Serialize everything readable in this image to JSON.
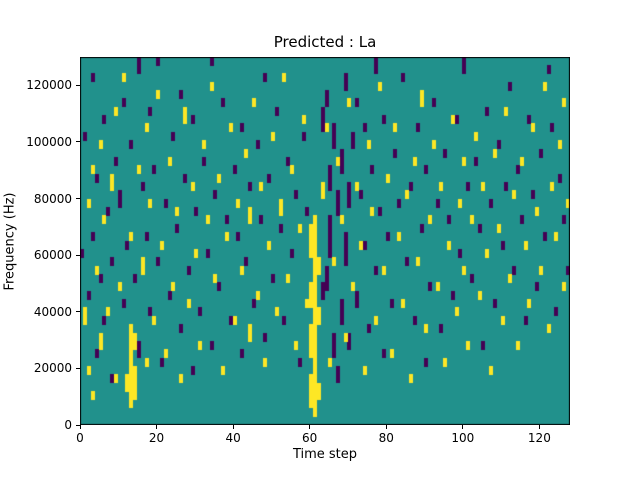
{
  "figure": {
    "title": "Predicted : La",
    "xlabel": "Time step",
    "ylabel": "Frequency (Hz)"
  },
  "chart_data": {
    "type": "heatmap",
    "title": "Predicted : La",
    "xlabel": "Time step",
    "ylabel": "Frequency (Hz)",
    "x_range": [
      0,
      128
    ],
    "y_range": [
      0,
      130000
    ],
    "grid": {
      "cols": 128,
      "rows": 44
    },
    "x_ticks": [
      0,
      20,
      40,
      60,
      80,
      100,
      120
    ],
    "y_ticks": [
      0,
      20000,
      40000,
      60000,
      80000,
      100000,
      120000
    ],
    "legend": "none",
    "grid_lines": false,
    "colors": {
      "background": "#21918c",
      "high": "#fde725",
      "low": "#440154"
    },
    "cell_encoding": "runs are [column, rowStart, rowEnd] inclusive; row 0 = 0 Hz (bottom), column 0 = time step 0 (left)",
    "yellow_runs": [
      [
        1,
        12,
        13
      ],
      [
        2,
        6,
        6
      ],
      [
        2,
        26,
        26
      ],
      [
        3,
        3,
        3
      ],
      [
        3,
        30,
        30
      ],
      [
        4,
        18,
        18
      ],
      [
        5,
        9,
        10
      ],
      [
        5,
        33,
        33
      ],
      [
        6,
        24,
        24
      ],
      [
        7,
        13,
        13
      ],
      [
        8,
        28,
        29
      ],
      [
        9,
        5,
        5
      ],
      [
        9,
        37,
        37
      ],
      [
        10,
        16,
        16
      ],
      [
        11,
        41,
        41
      ],
      [
        12,
        4,
        5
      ],
      [
        13,
        2,
        11
      ],
      [
        13,
        22,
        22
      ],
      [
        14,
        3,
        6
      ],
      [
        14,
        9,
        10
      ],
      [
        15,
        30,
        30
      ],
      [
        16,
        18,
        19
      ],
      [
        17,
        7,
        7
      ],
      [
        17,
        35,
        35
      ],
      [
        18,
        26,
        26
      ],
      [
        19,
        12,
        12
      ],
      [
        20,
        39,
        39
      ],
      [
        21,
        21,
        21
      ],
      [
        22,
        8,
        8
      ],
      [
        23,
        31,
        31
      ],
      [
        24,
        16,
        16
      ],
      [
        25,
        25,
        25
      ],
      [
        26,
        5,
        5
      ],
      [
        27,
        36,
        37
      ],
      [
        28,
        14,
        14
      ],
      [
        29,
        28,
        28
      ],
      [
        30,
        20,
        20
      ],
      [
        31,
        9,
        9
      ],
      [
        32,
        33,
        33
      ],
      [
        33,
        24,
        24
      ],
      [
        34,
        40,
        40
      ],
      [
        35,
        17,
        17
      ],
      [
        36,
        29,
        29
      ],
      [
        37,
        6,
        6
      ],
      [
        38,
        22,
        22
      ],
      [
        39,
        35,
        35
      ],
      [
        40,
        12,
        12
      ],
      [
        41,
        26,
        26
      ],
      [
        42,
        18,
        18
      ],
      [
        43,
        32,
        32
      ],
      [
        44,
        10,
        11
      ],
      [
        44,
        24,
        25
      ],
      [
        45,
        38,
        38
      ],
      [
        46,
        15,
        15
      ],
      [
        47,
        28,
        28
      ],
      [
        48,
        7,
        7
      ],
      [
        49,
        21,
        21
      ],
      [
        50,
        34,
        34
      ],
      [
        51,
        13,
        13
      ],
      [
        52,
        25,
        26
      ],
      [
        53,
        41,
        41
      ],
      [
        54,
        17,
        17
      ],
      [
        55,
        30,
        30
      ],
      [
        56,
        9,
        9
      ],
      [
        57,
        23,
        23
      ],
      [
        58,
        36,
        36
      ],
      [
        59,
        14,
        14
      ],
      [
        60,
        2,
        5
      ],
      [
        60,
        8,
        11
      ],
      [
        60,
        14,
        16
      ],
      [
        60,
        20,
        23
      ],
      [
        61,
        1,
        24
      ],
      [
        62,
        3,
        4
      ],
      [
        62,
        12,
        13
      ],
      [
        62,
        18,
        19
      ],
      [
        63,
        27,
        28
      ],
      [
        64,
        35,
        35
      ],
      [
        65,
        7,
        7
      ],
      [
        66,
        19,
        19
      ],
      [
        67,
        31,
        31
      ],
      [
        68,
        24,
        24
      ],
      [
        69,
        10,
        10
      ],
      [
        70,
        38,
        38
      ],
      [
        71,
        16,
        16
      ],
      [
        72,
        28,
        28
      ],
      [
        73,
        21,
        21
      ],
      [
        74,
        6,
        6
      ],
      [
        75,
        33,
        33
      ],
      [
        76,
        25,
        25
      ],
      [
        77,
        12,
        12
      ],
      [
        78,
        40,
        40
      ],
      [
        79,
        18,
        18
      ],
      [
        80,
        29,
        29
      ],
      [
        81,
        8,
        8
      ],
      [
        82,
        35,
        35
      ],
      [
        83,
        22,
        22
      ],
      [
        84,
        14,
        14
      ],
      [
        85,
        27,
        27
      ],
      [
        86,
        5,
        5
      ],
      [
        87,
        31,
        31
      ],
      [
        88,
        19,
        19
      ],
      [
        89,
        38,
        39
      ],
      [
        90,
        11,
        11
      ],
      [
        91,
        24,
        24
      ],
      [
        92,
        33,
        33
      ],
      [
        93,
        16,
        16
      ],
      [
        94,
        28,
        28
      ],
      [
        95,
        7,
        7
      ],
      [
        96,
        21,
        21
      ],
      [
        97,
        36,
        36
      ],
      [
        98,
        13,
        13
      ],
      [
        99,
        26,
        26
      ],
      [
        100,
        18,
        18
      ],
      [
        100,
        31,
        31
      ],
      [
        101,
        9,
        9
      ],
      [
        102,
        24,
        24
      ],
      [
        103,
        34,
        34
      ],
      [
        104,
        15,
        15
      ],
      [
        105,
        28,
        28
      ],
      [
        106,
        20,
        20
      ],
      [
        107,
        6,
        6
      ],
      [
        108,
        32,
        32
      ],
      [
        109,
        23,
        23
      ],
      [
        110,
        12,
        12
      ],
      [
        111,
        37,
        37
      ],
      [
        112,
        17,
        17
      ],
      [
        113,
        27,
        27
      ],
      [
        114,
        9,
        9
      ],
      [
        115,
        31,
        31
      ],
      [
        116,
        21,
        21
      ],
      [
        117,
        14,
        14
      ],
      [
        118,
        35,
        35
      ],
      [
        119,
        25,
        25
      ],
      [
        120,
        18,
        18
      ],
      [
        121,
        40,
        40
      ],
      [
        122,
        11,
        11
      ],
      [
        123,
        28,
        28
      ],
      [
        124,
        22,
        22
      ],
      [
        125,
        33,
        33
      ],
      [
        126,
        16,
        16
      ],
      [
        126,
        38,
        38
      ],
      [
        127,
        26,
        26
      ]
    ],
    "dark_runs": [
      [
        0,
        20,
        20
      ],
      [
        1,
        34,
        34
      ],
      [
        2,
        15,
        15
      ],
      [
        3,
        22,
        22
      ],
      [
        3,
        41,
        41
      ],
      [
        4,
        8,
        8
      ],
      [
        4,
        29,
        29
      ],
      [
        5,
        17,
        17
      ],
      [
        6,
        12,
        12
      ],
      [
        6,
        36,
        36
      ],
      [
        7,
        25,
        25
      ],
      [
        8,
        5,
        5
      ],
      [
        8,
        19,
        19
      ],
      [
        9,
        31,
        31
      ],
      [
        10,
        26,
        27
      ],
      [
        11,
        14,
        14
      ],
      [
        11,
        38,
        38
      ],
      [
        12,
        21,
        21
      ],
      [
        13,
        33,
        33
      ],
      [
        14,
        17,
        17
      ],
      [
        15,
        8,
        9
      ],
      [
        15,
        42,
        43
      ],
      [
        16,
        28,
        28
      ],
      [
        17,
        22,
        22
      ],
      [
        18,
        13,
        13
      ],
      [
        18,
        37,
        37
      ],
      [
        19,
        30,
        30
      ],
      [
        20,
        19,
        19
      ],
      [
        20,
        43,
        43
      ],
      [
        21,
        7,
        7
      ],
      [
        22,
        26,
        26
      ],
      [
        23,
        15,
        15
      ],
      [
        24,
        34,
        34
      ],
      [
        25,
        23,
        23
      ],
      [
        26,
        11,
        11
      ],
      [
        26,
        39,
        39
      ],
      [
        27,
        29,
        29
      ],
      [
        28,
        18,
        18
      ],
      [
        29,
        6,
        6
      ],
      [
        29,
        36,
        36
      ],
      [
        30,
        25,
        25
      ],
      [
        31,
        13,
        13
      ],
      [
        32,
        31,
        31
      ],
      [
        33,
        20,
        20
      ],
      [
        34,
        9,
        9
      ],
      [
        34,
        43,
        43
      ],
      [
        35,
        27,
        27
      ],
      [
        36,
        16,
        16
      ],
      [
        37,
        38,
        38
      ],
      [
        38,
        24,
        24
      ],
      [
        39,
        12,
        12
      ],
      [
        40,
        30,
        30
      ],
      [
        41,
        22,
        22
      ],
      [
        42,
        8,
        8
      ],
      [
        42,
        35,
        35
      ],
      [
        43,
        19,
        19
      ],
      [
        44,
        28,
        28
      ],
      [
        45,
        14,
        14
      ],
      [
        46,
        33,
        33
      ],
      [
        47,
        24,
        24
      ],
      [
        48,
        10,
        10
      ],
      [
        48,
        41,
        41
      ],
      [
        49,
        29,
        29
      ],
      [
        50,
        17,
        17
      ],
      [
        51,
        37,
        37
      ],
      [
        52,
        23,
        23
      ],
      [
        53,
        12,
        12
      ],
      [
        54,
        31,
        31
      ],
      [
        55,
        20,
        20
      ],
      [
        56,
        27,
        27
      ],
      [
        57,
        7,
        7
      ],
      [
        58,
        34,
        34
      ],
      [
        59,
        25,
        25
      ],
      [
        63,
        15,
        16
      ],
      [
        63,
        35,
        37
      ],
      [
        64,
        16,
        18
      ],
      [
        64,
        38,
        39
      ],
      [
        65,
        20,
        24
      ],
      [
        65,
        28,
        30
      ],
      [
        66,
        8,
        10
      ],
      [
        66,
        33,
        35
      ],
      [
        67,
        5,
        6
      ],
      [
        67,
        25,
        27
      ],
      [
        68,
        12,
        14
      ],
      [
        68,
        30,
        32
      ],
      [
        69,
        19,
        22
      ],
      [
        69,
        40,
        41
      ],
      [
        70,
        9,
        10
      ],
      [
        70,
        26,
        28
      ],
      [
        71,
        33,
        34
      ],
      [
        72,
        14,
        15
      ],
      [
        72,
        38,
        38
      ],
      [
        73,
        27,
        27
      ],
      [
        74,
        21,
        21
      ],
      [
        74,
        35,
        35
      ],
      [
        75,
        11,
        11
      ],
      [
        76,
        30,
        30
      ],
      [
        77,
        18,
        18
      ],
      [
        77,
        42,
        43
      ],
      [
        78,
        25,
        25
      ],
      [
        79,
        8,
        8
      ],
      [
        79,
        36,
        36
      ],
      [
        80,
        22,
        22
      ],
      [
        81,
        14,
        14
      ],
      [
        82,
        32,
        32
      ],
      [
        83,
        26,
        26
      ],
      [
        84,
        41,
        41
      ],
      [
        85,
        19,
        19
      ],
      [
        86,
        28,
        28
      ],
      [
        87,
        12,
        12
      ],
      [
        88,
        35,
        35
      ],
      [
        89,
        23,
        23
      ],
      [
        90,
        7,
        7
      ],
      [
        90,
        30,
        30
      ],
      [
        91,
        16,
        16
      ],
      [
        92,
        38,
        38
      ],
      [
        93,
        26,
        26
      ],
      [
        94,
        11,
        11
      ],
      [
        95,
        32,
        32
      ],
      [
        96,
        24,
        24
      ],
      [
        97,
        15,
        15
      ],
      [
        98,
        36,
        36
      ],
      [
        99,
        20,
        20
      ],
      [
        100,
        42,
        43
      ],
      [
        101,
        28,
        28
      ],
      [
        102,
        17,
        17
      ],
      [
        103,
        31,
        31
      ],
      [
        104,
        23,
        23
      ],
      [
        105,
        9,
        9
      ],
      [
        106,
        37,
        37
      ],
      [
        107,
        26,
        26
      ],
      [
        108,
        14,
        14
      ],
      [
        109,
        33,
        33
      ],
      [
        110,
        21,
        21
      ],
      [
        111,
        28,
        28
      ],
      [
        112,
        40,
        40
      ],
      [
        113,
        18,
        18
      ],
      [
        114,
        30,
        30
      ],
      [
        115,
        24,
        24
      ],
      [
        116,
        12,
        12
      ],
      [
        117,
        36,
        36
      ],
      [
        118,
        27,
        27
      ],
      [
        119,
        16,
        16
      ],
      [
        120,
        32,
        32
      ],
      [
        121,
        22,
        22
      ],
      [
        122,
        42,
        42
      ],
      [
        123,
        35,
        35
      ],
      [
        124,
        13,
        13
      ],
      [
        125,
        29,
        29
      ],
      [
        126,
        24,
        24
      ],
      [
        127,
        18,
        18
      ]
    ]
  }
}
